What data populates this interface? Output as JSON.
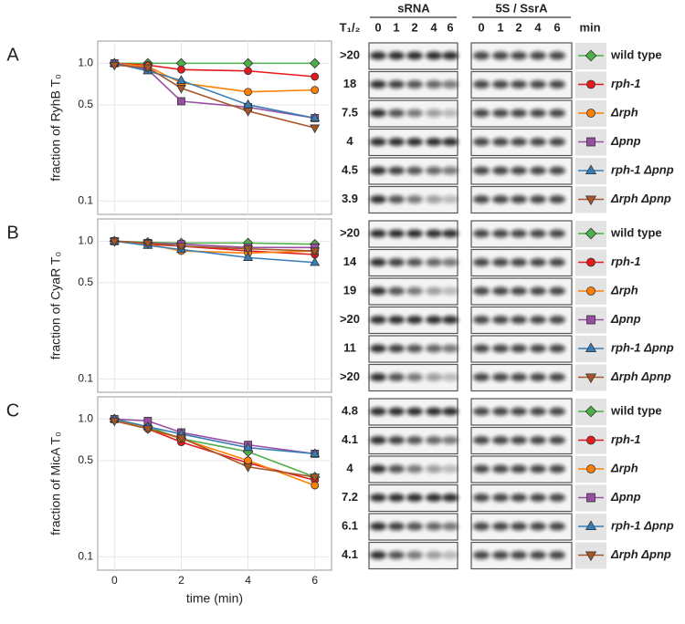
{
  "blots": {
    "srna_label": "sRNA",
    "control_label": "5S / SsrA",
    "lanes": [
      0,
      1,
      2,
      4,
      6
    ],
    "half_life_label": "T₁/₂",
    "unit_label": "min"
  },
  "chart_data": [
    {
      "type": "line",
      "panel": "A",
      "ylabel": "fraction of RyhB T₀",
      "log_y": true,
      "grid": true,
      "x": [
        0,
        1,
        2,
        4,
        6
      ],
      "xlim": [
        -0.5,
        6.5
      ],
      "xticks": [
        0,
        2,
        4,
        6
      ],
      "ylim": [
        0.08,
        1.45
      ],
      "yticks": [
        0.1,
        0.5,
        {
          "value": 1,
          "label": "1.0"
        }
      ],
      "half_lives": [
        ">20",
        18,
        7.5,
        4.0,
        4.5,
        3.9
      ],
      "series": [
        {
          "name": "wild type",
          "color": "#4daf4a",
          "marker": "diamond",
          "values": [
            1.0,
            1.0,
            1.0,
            1.0,
            1.0
          ]
        },
        {
          "name": "rph-1",
          "color": "#e41a1c",
          "marker": "circle",
          "values": [
            1.0,
            0.97,
            0.9,
            0.88,
            0.8
          ]
        },
        {
          "name": "Δrph",
          "color": "#ff7f00",
          "marker": "circle",
          "values": [
            1.0,
            0.95,
            0.72,
            0.62,
            0.64
          ]
        },
        {
          "name": "Δpnp",
          "color": "#984ea3",
          "marker": "square",
          "values": [
            1.0,
            0.9,
            0.53,
            0.48,
            0.4
          ]
        },
        {
          "name": "rph-1 Δpnp",
          "color": "#377eb8",
          "marker": "triangle-up",
          "values": [
            1.0,
            0.88,
            0.75,
            0.5,
            0.4
          ]
        },
        {
          "name": "Δrph Δpnp",
          "color": "#a65628",
          "marker": "triangle-down",
          "values": [
            0.97,
            0.93,
            0.66,
            0.45,
            0.34
          ]
        }
      ]
    },
    {
      "type": "line",
      "panel": "B",
      "ylabel": "fraction of CyaR T₀",
      "log_y": true,
      "grid": true,
      "x": [
        0,
        1,
        2,
        4,
        6
      ],
      "xlim": [
        -0.5,
        6.5
      ],
      "xticks": [
        0,
        2,
        4,
        6
      ],
      "ylim": [
        0.08,
        1.45
      ],
      "yticks": [
        0.1,
        0.5,
        {
          "value": 1,
          "label": "1.0"
        }
      ],
      "half_lives": [
        ">20",
        14,
        19,
        ">20",
        11,
        ">20"
      ],
      "series": [
        {
          "name": "wild type",
          "color": "#4daf4a",
          "marker": "diamond",
          "values": [
            1.0,
            0.98,
            0.97,
            0.97,
            0.95
          ]
        },
        {
          "name": "rph-1",
          "color": "#e41a1c",
          "marker": "circle",
          "values": [
            1.0,
            0.95,
            0.92,
            0.85,
            0.8
          ]
        },
        {
          "name": "Δrph",
          "color": "#ff7f00",
          "marker": "circle",
          "values": [
            1.0,
            0.95,
            0.85,
            0.82,
            0.85
          ]
        },
        {
          "name": "Δpnp",
          "color": "#984ea3",
          "marker": "square",
          "values": [
            1.0,
            0.97,
            0.95,
            0.9,
            0.9
          ]
        },
        {
          "name": "rph-1 Δpnp",
          "color": "#377eb8",
          "marker": "triangle-up",
          "values": [
            1.0,
            0.93,
            0.87,
            0.76,
            0.7
          ]
        },
        {
          "name": "Δrph Δpnp",
          "color": "#a65628",
          "marker": "triangle-down",
          "values": [
            1.0,
            0.97,
            0.92,
            0.88,
            0.85
          ]
        }
      ]
    },
    {
      "type": "line",
      "panel": "C",
      "ylabel": "fraction of MicA T₀",
      "xlabel": "time (min)",
      "log_y": true,
      "grid": true,
      "x": [
        0,
        1,
        2,
        4,
        6
      ],
      "xlim": [
        -0.5,
        6.5
      ],
      "xticks": [
        0,
        2,
        4,
        6
      ],
      "ylim": [
        0.08,
        1.45
      ],
      "yticks": [
        0.1,
        0.5,
        {
          "value": 1,
          "label": "1.0"
        }
      ],
      "half_lives": [
        4.8,
        4.1,
        4.0,
        7.2,
        6.1,
        4.1
      ],
      "series": [
        {
          "name": "wild type",
          "color": "#4daf4a",
          "marker": "diamond",
          "values": [
            1.0,
            0.88,
            0.72,
            0.58,
            0.38
          ]
        },
        {
          "name": "rph-1",
          "color": "#e41a1c",
          "marker": "circle",
          "values": [
            1.0,
            0.85,
            0.68,
            0.48,
            0.36
          ]
        },
        {
          "name": "Δrph",
          "color": "#ff7f00",
          "marker": "circle",
          "values": [
            1.0,
            0.85,
            0.72,
            0.5,
            0.33
          ]
        },
        {
          "name": "Δpnp",
          "color": "#984ea3",
          "marker": "square",
          "values": [
            1.0,
            0.97,
            0.8,
            0.65,
            0.56
          ]
        },
        {
          "name": "rph-1 Δpnp",
          "color": "#377eb8",
          "marker": "triangle-up",
          "values": [
            1.0,
            0.88,
            0.78,
            0.62,
            0.56
          ]
        },
        {
          "name": "Δrph Δpnp",
          "color": "#a65628",
          "marker": "triangle-down",
          "values": [
            0.97,
            0.85,
            0.73,
            0.45,
            0.38
          ]
        }
      ]
    }
  ]
}
